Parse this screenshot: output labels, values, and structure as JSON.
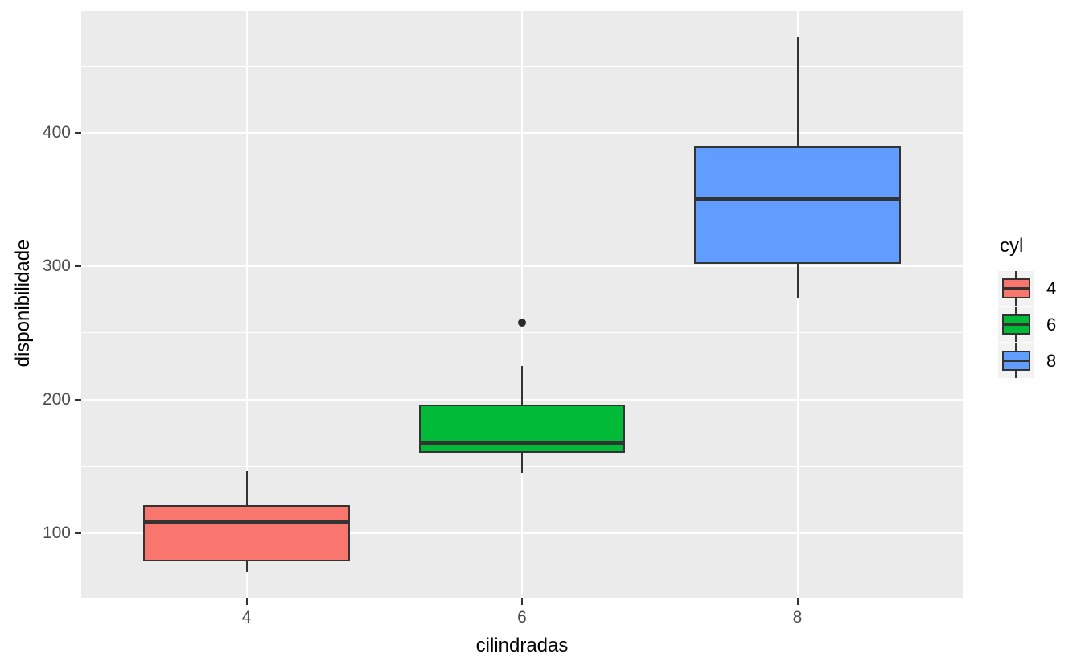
{
  "chart_data": {
    "type": "boxplot",
    "xlabel": "cilindradas",
    "ylabel": "disponibilidade",
    "categories": [
      "4",
      "6",
      "8"
    ],
    "y_axis": {
      "major_ticks": [
        100,
        200,
        300,
        400
      ],
      "minor_ticks": [
        150,
        250,
        350,
        450
      ],
      "range": [
        51,
        491
      ],
      "grid": true
    },
    "series": [
      {
        "category": "4",
        "color": "#F8766D",
        "min": 71.1,
        "q1": 78.85,
        "median": 108,
        "q3": 120.65,
        "max": 146.7,
        "outliers": []
      },
      {
        "category": "6",
        "color": "#00BA38",
        "min": 145,
        "q1": 160,
        "median": 167.6,
        "q3": 196.3,
        "max": 225,
        "outliers": [
          258
        ]
      },
      {
        "category": "8",
        "color": "#619CFF",
        "min": 275.8,
        "q1": 301.75,
        "median": 350.5,
        "q3": 390,
        "max": 472,
        "outliers": []
      }
    ],
    "legend": {
      "title": "cyl",
      "position": "right",
      "entries": [
        {
          "label": "4",
          "color": "#F8766D"
        },
        {
          "label": "6",
          "color": "#00BA38"
        },
        {
          "label": "8",
          "color": "#619CFF"
        }
      ]
    },
    "colors": {
      "panel_background": "#EBEBEB",
      "grid": "#FFFFFF",
      "box_stroke": "#333333",
      "axis_text": "#4D4D4D",
      "axis_title": "#000000",
      "legend_key_background": "#F2F2F2"
    }
  }
}
